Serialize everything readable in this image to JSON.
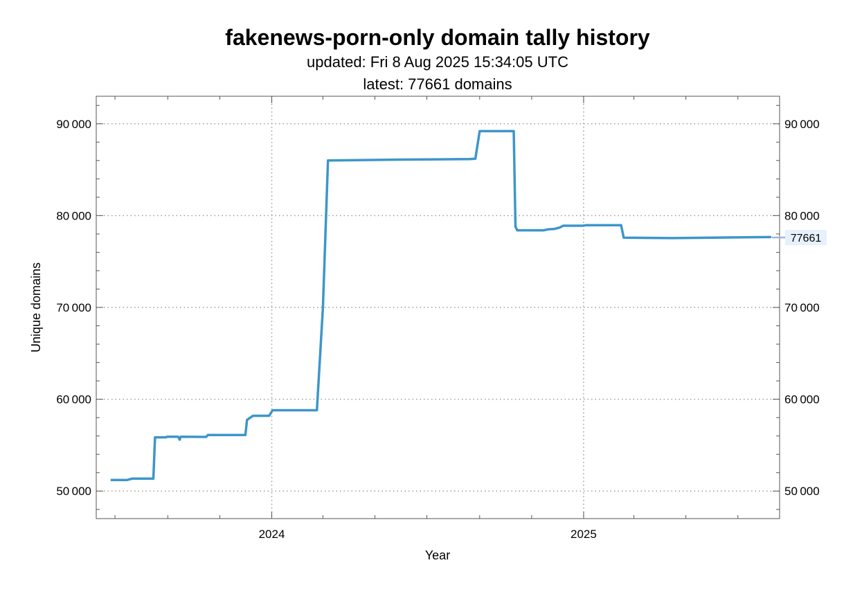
{
  "chart_data": {
    "type": "line",
    "title": "fakenews-porn-only domain tally history",
    "subtitle_updated": "updated: Fri 8 Aug 2025 15:34:05 UTC",
    "subtitle_latest": "latest: 77661 domains",
    "xlabel": "Year",
    "ylabel": "Unique domains",
    "x_ticks": [
      "2024",
      "2025"
    ],
    "y_ticks": [
      "50 000",
      "60 000",
      "70 000",
      "80 000",
      "90 000"
    ],
    "ylim": [
      47000,
      93000
    ],
    "xlim": [
      "2023-06-09",
      "2025-08-19"
    ],
    "grid": true,
    "latest_value_label": "77661",
    "line_color": "#3d96ca",
    "series": [
      {
        "points": [
          [
            "2023-06-27",
            51200
          ],
          [
            "2023-07-15",
            51200
          ],
          [
            "2023-07-21",
            51350
          ],
          [
            "2023-08-15",
            51350
          ],
          [
            "2023-08-17",
            55850
          ],
          [
            "2023-08-23",
            55850
          ],
          [
            "2023-08-30",
            55850
          ],
          [
            "2023-08-31",
            55920
          ],
          [
            "2023-09-13",
            55920
          ],
          [
            "2023-09-15",
            55600
          ],
          [
            "2023-09-16",
            55920
          ],
          [
            "2023-10-16",
            55900
          ],
          [
            "2023-10-18",
            56100
          ],
          [
            "2023-12-01",
            56100
          ],
          [
            "2023-12-03",
            57750
          ],
          [
            "2023-12-10",
            58200
          ],
          [
            "2023-12-29",
            58200
          ],
          [
            "2024-01-02",
            58800
          ],
          [
            "2024-02-23",
            58800
          ],
          [
            "2024-03-01",
            70000
          ],
          [
            "2024-03-07",
            86000
          ],
          [
            "2024-06-01",
            86100
          ],
          [
            "2024-08-20",
            86150
          ],
          [
            "2024-08-27",
            86200
          ],
          [
            "2024-09-01",
            89200
          ],
          [
            "2024-10-11",
            89200
          ],
          [
            "2024-10-13",
            78800
          ],
          [
            "2024-10-15",
            78400
          ],
          [
            "2024-11-15",
            78400
          ],
          [
            "2024-11-20",
            78500
          ],
          [
            "2024-11-28",
            78550
          ],
          [
            "2024-12-04",
            78700
          ],
          [
            "2024-12-08",
            78900
          ],
          [
            "2024-12-31",
            78900
          ],
          [
            "2025-01-04",
            78950
          ],
          [
            "2025-02-14",
            78950
          ],
          [
            "2025-02-17",
            77600
          ],
          [
            "2025-04-15",
            77550
          ],
          [
            "2025-06-01",
            77600
          ],
          [
            "2025-07-15",
            77650
          ],
          [
            "2025-08-08",
            77661
          ]
        ]
      }
    ]
  }
}
